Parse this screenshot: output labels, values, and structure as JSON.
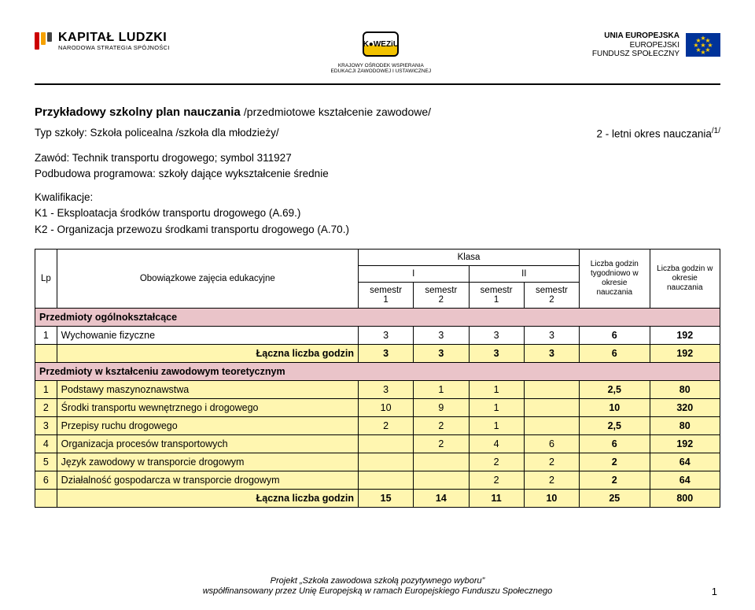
{
  "logos": {
    "kapital": {
      "big": "KAPITAŁ LUDZKI",
      "small": "NARODOWA STRATEGIA SPÓJNOŚCI"
    },
    "koweziu": {
      "mark": "K●WEZiU",
      "cap1": "KRAJOWY OŚRODEK WSPIERANIA",
      "cap2": "EDUKACJI ZAWODOWEJ I USTAWICZNEJ"
    },
    "ue": {
      "line1": "UNIA EUROPEJSKA",
      "line2": "EUROPEJSKI",
      "line3": "FUNDUSZ SPOŁECZNY"
    }
  },
  "doc": {
    "title_bold": "Przykładowy szkolny plan nauczania ",
    "title_rest": "/przedmiotowe kształcenie zawodowe/",
    "school_line": "Typ szkoły: Szkoła policealna  /szkoła dla młodzieży/",
    "period_label": "2 -  letni okres nauczania",
    "period_sup": "/1/",
    "prof_line": "Zawód: Technik transportu drogowego; symbol 311927",
    "podbudowa": "Podbudowa programowa: szkoły dające wykształcenie średnie",
    "kwal_h": "Kwalifikacje:",
    "kwal1": "K1 - Eksploatacja środków transportu drogowego (A.69.)",
    "kwal2": "K2 - Organizacja przewozu środkami transportu drogowego (A.70.)"
  },
  "headers": {
    "lp": "Lp",
    "obow": "Obowiązkowe zajęcia edukacyjne",
    "klasa": "Klasa",
    "k1": "I",
    "k2": "II",
    "sem": "semestr",
    "s1": "1",
    "s2": "2",
    "weekly": "Liczba godzin tygodniowo w okresie nauczania",
    "total": "Liczba godzin w  okresie nauczania"
  },
  "sections": {
    "ogol": "Przedmioty ogólnokształcące",
    "teor": "Przedmioty w kształceniu zawodowym teoretycznym",
    "sumlabel": "Łączna liczba godzin"
  },
  "ogol_rows": [
    {
      "lp": "1",
      "name": "Wychowanie fizyczne",
      "s": [
        "3",
        "3",
        "3",
        "3"
      ],
      "wk": "6",
      "tot": "192"
    }
  ],
  "ogol_sum": {
    "s": [
      "3",
      "3",
      "3",
      "3"
    ],
    "wk": "6",
    "tot": "192"
  },
  "teor_rows": [
    {
      "lp": "1",
      "name": "Podstawy maszynoznawstwa",
      "s": [
        "3",
        "1",
        "1",
        ""
      ],
      "wk": "2,5",
      "tot": "80"
    },
    {
      "lp": "2",
      "name": "Środki transportu wewnętrznego i drogowego",
      "s": [
        "10",
        "9",
        "1",
        ""
      ],
      "wk": "10",
      "tot": "320"
    },
    {
      "lp": "3",
      "name": "Przepisy ruchu drogowego",
      "s": [
        "2",
        "2",
        "1",
        ""
      ],
      "wk": "2,5",
      "tot": "80"
    },
    {
      "lp": "4",
      "name": "Organizacja procesów transportowych",
      "s": [
        "",
        "2",
        "4",
        "6"
      ],
      "wk": "6",
      "tot": "192"
    },
    {
      "lp": "5",
      "name": "Język zawodowy w transporcie drogowym",
      "s": [
        "",
        "",
        "2",
        "2"
      ],
      "wk": "2",
      "tot": "64"
    },
    {
      "lp": "6",
      "name": "Działalność gospodarcza w transporcie drogowym",
      "s": [
        "",
        "",
        "2",
        "2"
      ],
      "wk": "2",
      "tot": "64"
    }
  ],
  "teor_sum": {
    "s": [
      "15",
      "14",
      "11",
      "10"
    ],
    "wk": "25",
    "tot": "800"
  },
  "footer": {
    "l1": "Projekt „Szkoła zawodowa szkołą pozytywnego wyboru”",
    "l2": "współfinansowany przez Unię Europejską w ramach Europejskiego Funduszu Społecznego"
  },
  "page_number": "1",
  "colors": {
    "section_bg": "#eac4c9",
    "yellow_bg": "#fff6b0"
  }
}
